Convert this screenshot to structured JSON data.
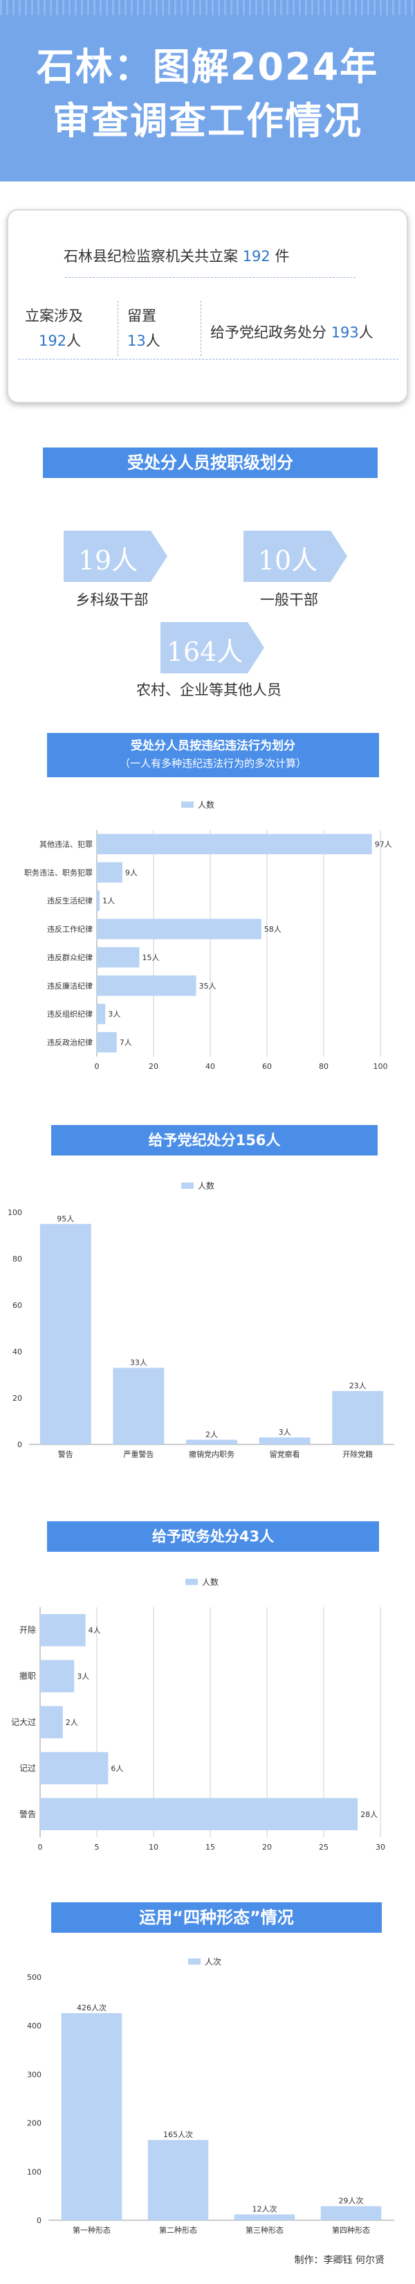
{
  "header": {
    "title_line1": "石林：图解2024年",
    "title_line2": "审查调查工作情况"
  },
  "summary": {
    "intro_prefix": "石林县纪检监察机关共立案",
    "total_cases": "192",
    "intro_suffix": "件",
    "involved_label": "立案涉及",
    "involved_value": "192",
    "involved_unit": "人",
    "detained_label": "留置",
    "detained_value": "13",
    "detained_unit": "人",
    "discipline_label": "给予党纪政务处分",
    "discipline_value": "193",
    "discipline_unit": "人"
  },
  "rank_section": {
    "title": "受处分人员按职级划分",
    "items": [
      {
        "value": "19人",
        "label": "乡科级干部"
      },
      {
        "value": "10人",
        "label": "一般干部"
      },
      {
        "value": "164人",
        "label": "农村、企业等其他人员"
      }
    ]
  },
  "colors": {
    "header_bg": "#75a6ea",
    "banner_bg": "#4b8ee8",
    "bar_fill": "#b9d3f5",
    "accent_text": "#2e75c9"
  },
  "charts": {
    "violation": {
      "banner_line1": "受处分人员按违纪违法行为划分",
      "banner_line2": "（一人有多种违纪违法行为的多次计算）"
    },
    "party": {
      "banner": "给予党纪处分156人"
    },
    "government": {
      "banner": "给予政务处分43人"
    },
    "forms": {
      "banner": "运用“四种形态”情况"
    }
  },
  "chart_data": [
    {
      "type": "bar",
      "orientation": "horizontal",
      "title": "",
      "legend": "人数",
      "legend_position": "top",
      "categories": [
        "其他违法、犯罪",
        "职务违法、职务犯罪",
        "违反生活纪律",
        "违反工作纪律",
        "违反群众纪律",
        "违反廉洁纪律",
        "违反组织纪律",
        "违反政治纪律"
      ],
      "values": [
        97,
        9,
        1,
        58,
        15,
        35,
        3,
        7
      ],
      "labels": [
        "97人",
        "9人",
        "1人",
        "58人",
        "15人",
        "35人",
        "3人",
        "7人"
      ],
      "xlim": [
        0,
        100
      ],
      "ticks": [
        "0",
        "20",
        "40",
        "60",
        "80",
        "100"
      ],
      "grid": true
    },
    {
      "type": "bar",
      "orientation": "vertical",
      "title": "",
      "legend": "人数",
      "legend_position": "top",
      "categories": [
        "警告",
        "严重警告",
        "撤销党内职务",
        "留党察看",
        "开除党籍"
      ],
      "values": [
        95,
        33,
        2,
        3,
        23
      ],
      "labels": [
        "95人",
        "33人",
        "2人",
        "3人",
        "23人"
      ],
      "ylim": [
        0,
        100
      ],
      "ticks": [
        "0",
        "20",
        "40",
        "60",
        "80",
        "100"
      ],
      "grid": false
    },
    {
      "type": "bar",
      "orientation": "horizontal",
      "title": "",
      "legend": "人数",
      "legend_position": "top",
      "categories": [
        "开除",
        "撤职",
        "记大过",
        "记过",
        "警告"
      ],
      "values": [
        4,
        3,
        2,
        6,
        28
      ],
      "labels": [
        "4人",
        "3人",
        "2人",
        "6人",
        "28人"
      ],
      "xlim": [
        0,
        30
      ],
      "ticks": [
        "0",
        "5",
        "10",
        "15",
        "20",
        "25",
        "30"
      ],
      "grid": true
    },
    {
      "type": "bar",
      "orientation": "vertical",
      "title": "",
      "legend": "人次",
      "legend_position": "top",
      "categories": [
        "第一种形态",
        "第二种形态",
        "第三种形态",
        "第四种形态"
      ],
      "values": [
        426,
        165,
        12,
        29
      ],
      "labels": [
        "426人次",
        "165人次",
        "12人次",
        "29人次"
      ],
      "ylim": [
        0,
        500
      ],
      "ticks": [
        "0",
        "100",
        "200",
        "300",
        "400",
        "500"
      ],
      "grid": false
    }
  ],
  "footer": {
    "credit": "制作：李卿钰 何尔贤"
  }
}
